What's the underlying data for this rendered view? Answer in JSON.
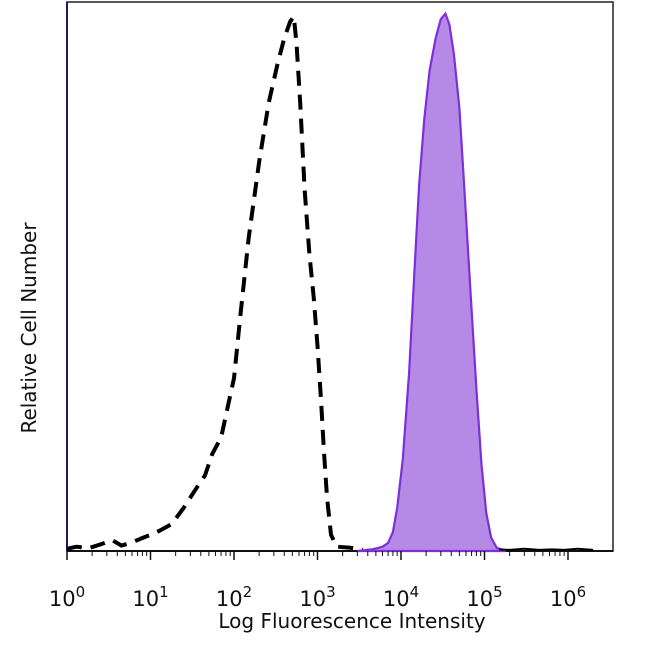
{
  "chart_data": {
    "type": "area",
    "title": "",
    "xlabel": "Log Fluorescence Intensity",
    "ylabel": "Relative Cell Number",
    "xscale": "log",
    "xlim": [
      1,
      2000000
    ],
    "ylim": [
      0,
      100
    ],
    "grid": false,
    "legend": "none",
    "x_ticks": [
      {
        "base": "10",
        "exp": "0",
        "value": 1
      },
      {
        "base": "10",
        "exp": "1",
        "value": 10
      },
      {
        "base": "10",
        "exp": "2",
        "value": 100
      },
      {
        "base": "10",
        "exp": "3",
        "value": 1000
      },
      {
        "base": "10",
        "exp": "4",
        "value": 10000
      },
      {
        "base": "10",
        "exp": "5",
        "value": 100000
      },
      {
        "base": "10",
        "exp": "6",
        "value": 1000000
      }
    ],
    "series": [
      {
        "style": "dashed",
        "color": "#000000",
        "fill": "none",
        "points": [
          [
            1.0,
            0.4
          ],
          [
            1.3,
            0.8
          ],
          [
            1.8,
            0.5
          ],
          [
            2.5,
            1.2
          ],
          [
            3.5,
            2.0
          ],
          [
            4.5,
            1.0
          ],
          [
            6.0,
            1.6
          ],
          [
            8.0,
            2.4
          ],
          [
            10,
            3.0
          ],
          [
            13,
            3.8
          ],
          [
            18,
            5.0
          ],
          [
            25,
            8.0
          ],
          [
            35,
            11.5
          ],
          [
            45,
            14.0
          ],
          [
            55,
            18.0
          ],
          [
            70,
            21.0
          ],
          [
            85,
            27.0
          ],
          [
            100,
            32.0
          ],
          [
            120,
            44.0
          ],
          [
            150,
            58.0
          ],
          [
            200,
            72.0
          ],
          [
            260,
            83.0
          ],
          [
            330,
            90.0
          ],
          [
            400,
            95.0
          ],
          [
            470,
            98.0
          ],
          [
            520,
            99.0
          ],
          [
            560,
            94.0
          ],
          [
            620,
            83.0
          ],
          [
            700,
            67.0
          ],
          [
            800,
            55.0
          ],
          [
            900,
            47.0
          ],
          [
            1000,
            38.0
          ],
          [
            1100,
            28.0
          ],
          [
            1200,
            18.0
          ],
          [
            1300,
            10.0
          ],
          [
            1450,
            3.0
          ],
          [
            1700,
            0.8
          ],
          [
            2500,
            0.6
          ],
          [
            3500,
            0.2
          ]
        ]
      },
      {
        "style": "filled",
        "color": "#7d2fd8",
        "fill": "#b48ae6",
        "points": [
          [
            3000,
            0.0
          ],
          [
            4500,
            0.3
          ],
          [
            6000,
            0.8
          ],
          [
            7000,
            1.5
          ],
          [
            8000,
            3.5
          ],
          [
            9000,
            8.0
          ],
          [
            10500,
            17.0
          ],
          [
            12500,
            33.0
          ],
          [
            14500,
            52.0
          ],
          [
            16500,
            68.0
          ],
          [
            19000,
            80.0
          ],
          [
            22000,
            89.0
          ],
          [
            26000,
            95.0
          ],
          [
            30000,
            98.5
          ],
          [
            34000,
            99.5
          ],
          [
            38000,
            97.5
          ],
          [
            43000,
            92.0
          ],
          [
            50000,
            82.0
          ],
          [
            58000,
            66.0
          ],
          [
            68000,
            48.0
          ],
          [
            80000,
            30.0
          ],
          [
            92000,
            16.0
          ],
          [
            105000,
            7.0
          ],
          [
            120000,
            2.5
          ],
          [
            140000,
            0.6
          ],
          [
            180000,
            0.0
          ]
        ]
      },
      {
        "style": "solid",
        "color": "#000000",
        "fill": "none",
        "points": [
          [
            150000,
            0.3
          ],
          [
            200000,
            0.2
          ],
          [
            300000,
            0.4
          ],
          [
            450000,
            0.2
          ],
          [
            650000,
            0.3
          ],
          [
            900000,
            0.2
          ],
          [
            1300000,
            0.4
          ],
          [
            2000000,
            0.2
          ]
        ]
      }
    ]
  }
}
